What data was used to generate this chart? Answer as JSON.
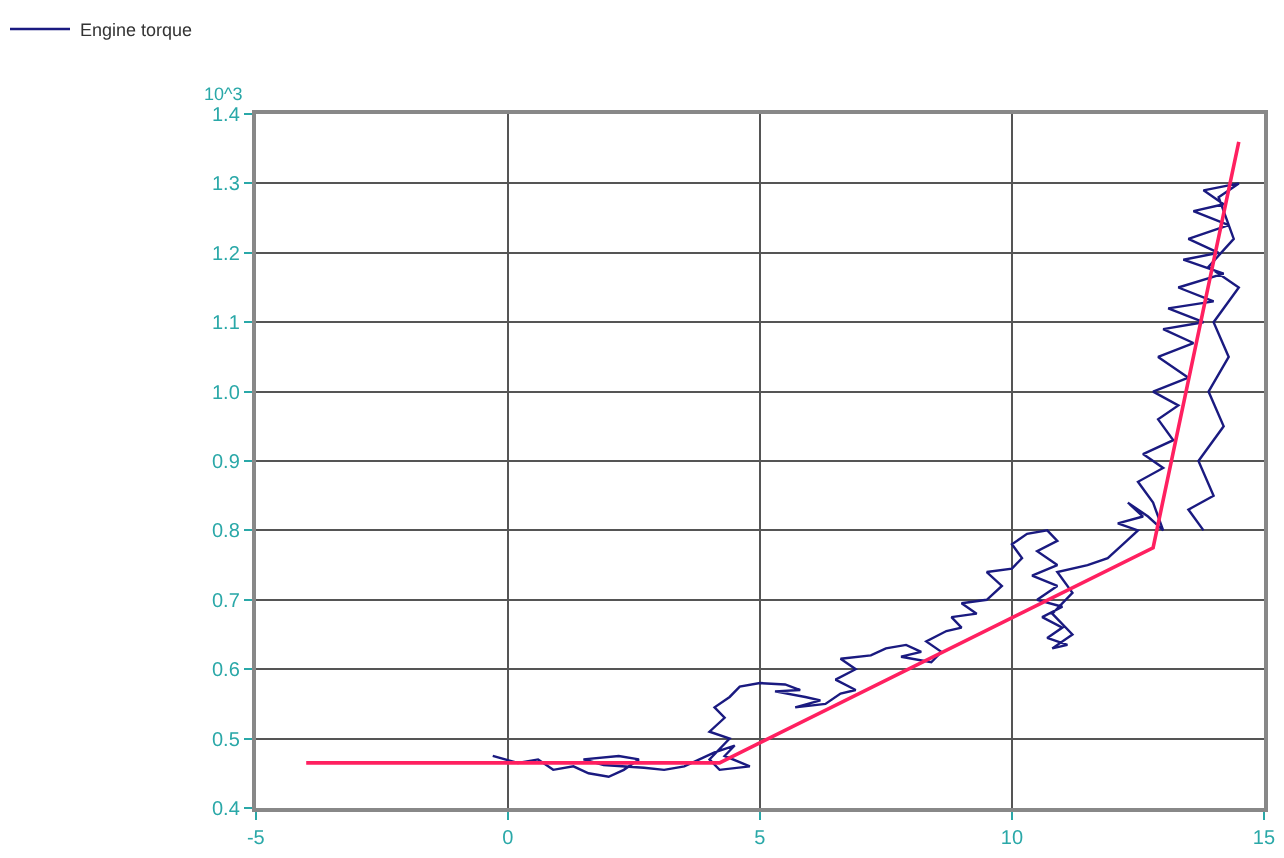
{
  "chart_data": {
    "type": "line",
    "legend": "top left",
    "grid": true,
    "annotations": [
      "10^3"
    ],
    "xlim": [
      -5,
      15
    ],
    "xticks": [
      -5,
      0,
      5,
      10,
      15
    ],
    "ylim": [
      0.4,
      1.4
    ],
    "yticks": [
      0.4,
      0.5,
      0.6,
      0.7,
      0.8,
      0.9,
      {
        "value": 1,
        "label": "1.0"
      },
      1.1,
      1.2,
      1.3,
      1.4
    ],
    "series": [
      {
        "name": "Engine torque",
        "color": "#1a1a80",
        "x": [
          -0.3,
          0.2,
          0.6,
          0.9,
          1.3,
          1.6,
          2.0,
          2.3,
          2.6,
          2.2,
          1.5,
          1.9,
          2.7,
          3.1,
          3.5,
          3.8,
          4.1,
          4.5,
          4.3,
          4.8,
          4.2,
          4.0,
          4.4,
          4.0,
          4.3,
          4.1,
          4.4,
          4.6,
          5.0,
          5.5,
          5.8,
          5.3,
          5.9,
          6.2,
          5.7,
          6.3,
          6.6,
          6.9,
          6.5,
          6.9,
          6.6,
          7.2,
          7.5,
          7.9,
          8.2,
          7.8,
          8.4,
          8.6,
          8.3,
          8.7,
          9.0,
          8.8,
          9.3,
          9.0,
          9.5,
          9.8,
          9.5,
          10.0,
          10.2,
          10.0,
          10.3,
          10.7,
          10.9,
          10.5,
          10.9,
          10.4,
          10.9,
          10.5,
          11.0,
          10.6,
          11.0,
          10.7,
          11.1,
          10.8,
          11.2,
          10.8,
          11.2,
          10.9,
          11.5,
          11.9,
          12.2,
          12.5,
          12.1,
          12.6,
          12.3,
          12.7,
          13.0,
          12.8,
          12.5,
          13.0,
          12.6,
          13.2,
          12.9,
          13.3,
          12.8,
          13.5,
          12.9,
          13.6,
          13.0,
          13.8,
          13.1,
          14.0,
          13.3,
          14.2,
          13.4,
          14.1,
          13.5,
          14.3,
          13.6,
          14.2,
          13.8,
          14.5,
          14.1,
          14.4,
          13.9,
          14.5,
          14.0,
          14.3,
          13.9,
          14.2,
          13.7,
          14.0,
          13.5,
          13.8
        ],
        "values": [
          0.475,
          0.465,
          0.47,
          0.455,
          0.46,
          0.45,
          0.445,
          0.455,
          0.47,
          0.475,
          0.47,
          0.462,
          0.458,
          0.455,
          0.46,
          0.47,
          0.48,
          0.49,
          0.475,
          0.46,
          0.455,
          0.47,
          0.5,
          0.51,
          0.53,
          0.545,
          0.56,
          0.575,
          0.58,
          0.578,
          0.57,
          0.568,
          0.56,
          0.555,
          0.545,
          0.55,
          0.565,
          0.57,
          0.585,
          0.6,
          0.615,
          0.62,
          0.63,
          0.635,
          0.625,
          0.618,
          0.61,
          0.625,
          0.64,
          0.655,
          0.66,
          0.675,
          0.68,
          0.695,
          0.7,
          0.72,
          0.74,
          0.745,
          0.76,
          0.78,
          0.795,
          0.8,
          0.785,
          0.77,
          0.75,
          0.735,
          0.72,
          0.7,
          0.69,
          0.675,
          0.66,
          0.645,
          0.635,
          0.63,
          0.65,
          0.68,
          0.71,
          0.74,
          0.75,
          0.76,
          0.78,
          0.8,
          0.81,
          0.82,
          0.84,
          0.82,
          0.8,
          0.84,
          0.87,
          0.89,
          0.91,
          0.93,
          0.96,
          0.98,
          1.0,
          1.02,
          1.05,
          1.07,
          1.09,
          1.1,
          1.12,
          1.13,
          1.15,
          1.17,
          1.19,
          1.2,
          1.22,
          1.24,
          1.26,
          1.27,
          1.29,
          1.3,
          1.28,
          1.22,
          1.18,
          1.15,
          1.1,
          1.05,
          1.0,
          0.95,
          0.9,
          0.85,
          0.83,
          0.8
        ]
      },
      {
        "color": "#ff2060",
        "x": [
          -4,
          4.2,
          12.8,
          14.5
        ],
        "values": [
          0.465,
          0.465,
          0.775,
          1.36
        ]
      }
    ]
  }
}
